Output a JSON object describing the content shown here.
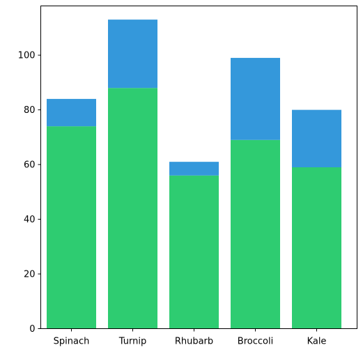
{
  "chart_data": {
    "type": "bar",
    "stacked": true,
    "categories": [
      "Spinach",
      "Turnip",
      "Rhubarb",
      "Broccoli",
      "Kale"
    ],
    "series": [
      {
        "values": [
          74,
          88,
          56,
          69,
          59
        ],
        "color": "#2ecc71"
      },
      {
        "values": [
          10,
          25,
          5,
          30,
          21
        ],
        "color": "#3498db"
      }
    ],
    "ylim": [
      0,
      118
    ],
    "yticks": [
      0,
      20,
      40,
      60,
      80,
      100
    ],
    "grid": false,
    "legend": "none",
    "title": "",
    "xlabel": "",
    "ylabel": ""
  }
}
